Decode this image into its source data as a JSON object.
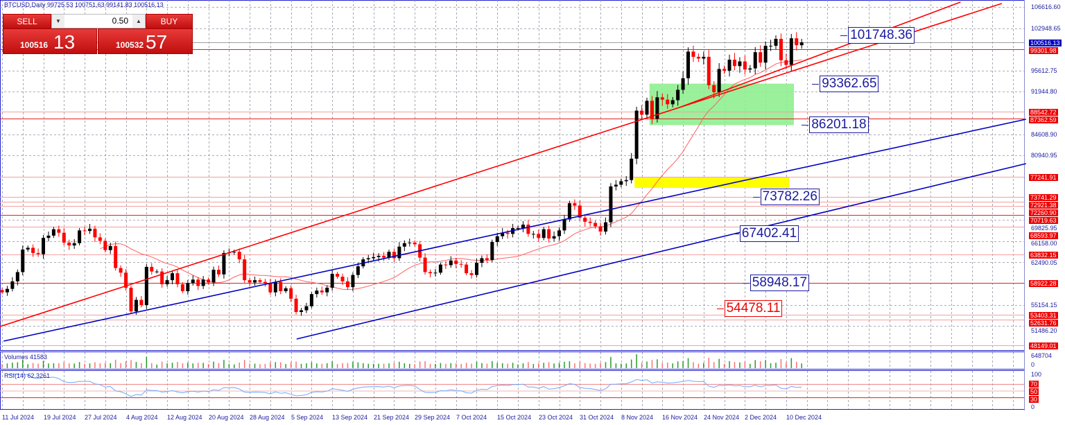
{
  "header": {
    "title": "BTCUSD,Daily  99725.53 100751.63 99141.83 100516.13"
  },
  "trade_panel": {
    "sell_label": "SELL",
    "buy_label": "BUY",
    "lot_value": "0.50",
    "sell_price_prefix": "100516",
    "sell_price_suffix": "13",
    "buy_price_prefix": "100532",
    "buy_price_suffix": "57"
  },
  "colors": {
    "up": "#000000",
    "down": "#ff0000",
    "channel_red": "#ff0000",
    "channel_blue": "#0000c0",
    "zone_green": "#90ee90",
    "zone_yellow": "#ffff00",
    "ma": "#ff6060",
    "rsi": "#6fa8ff"
  },
  "chart_data": {
    "type": "candlestick",
    "symbol": "BTCUSD",
    "timeframe": "Daily",
    "start_date": "11 Jul 2024",
    "price_unit": "thousands USD",
    "closes": [
      57.3,
      57.9,
      59.2,
      60.8,
      64.7,
      65.0,
      64.1,
      63.9,
      66.7,
      67.1,
      68.2,
      67.6,
      65.9,
      65.4,
      65.8,
      68.0,
      67.9,
      68.3,
      66.8,
      66.2,
      64.6,
      65.3,
      61.5,
      60.7,
      58.1,
      54.0,
      56.0,
      55.1,
      61.7,
      60.9,
      60.9,
      58.7,
      59.4,
      60.6,
      58.7,
      57.5,
      58.9,
      59.5,
      58.4,
      59.5,
      59.0,
      61.2,
      60.4,
      64.1,
      64.2,
      64.3,
      63.0,
      59.4,
      59.0,
      59.4,
      59.1,
      58.9,
      57.3,
      59.1,
      57.5,
      58.0,
      56.2,
      53.9,
      54.2,
      54.9,
      57.0,
      57.6,
      57.3,
      58.1,
      60.5,
      60.0,
      59.2,
      58.2,
      60.3,
      61.8,
      63.0,
      63.2,
      63.4,
      63.6,
      63.3,
      64.3,
      63.2,
      65.2,
      65.8,
      65.9,
      65.6,
      63.3,
      60.8,
      60.6,
      60.7,
      62.1,
      62.0,
      62.8,
      62.2,
      62.1,
      60.6,
      60.3,
      62.4,
      63.2,
      62.9,
      66.0,
      67.0,
      67.6,
      67.4,
      68.4,
      68.4,
      69.0,
      67.4,
      67.4,
      66.7,
      68.2,
      66.6,
      67.0,
      68.0,
      69.9,
      72.7,
      72.3,
      70.2,
      69.5,
      69.3,
      68.7,
      67.8,
      69.4,
      75.6,
      75.9,
      76.5,
      76.7,
      80.4,
      88.7,
      88.0,
      90.4,
      87.3,
      91.0,
      90.6,
      89.8,
      90.5,
      92.3,
      94.3,
      98.9,
      98.0,
      97.7,
      98.0,
      93.1,
      91.9,
      95.9,
      95.6,
      97.5,
      96.4,
      97.2,
      95.8,
      96.0,
      98.8,
      97.0,
      99.9,
      99.9,
      101.1,
      97.4,
      96.6,
      101.2,
      100.0,
      100.5
    ],
    "first_open": 57.7,
    "ma_period": 20,
    "price_axis_range": [
      48149.01,
      106616.6
    ],
    "price_ticks": [
      "106616.60",
      "102948.65",
      "95612.75",
      "91944.80",
      "84608.90",
      "80940.95",
      "69825.95",
      "66158.00",
      "62490.05",
      "55154.15",
      "51486.20"
    ],
    "horizontal_levels": [
      "99301.98",
      "88542.72",
      "87362.59",
      "77241.91",
      "73741.29",
      "72921.38",
      "72260.90",
      "70719.63",
      "68593.97",
      "63832.15",
      "58922.28",
      "53403.31",
      "52631.76",
      "48149.01"
    ],
    "current_price": "100516.13",
    "date_labels": [
      "11 Jul 2024",
      "19 Jul 2024",
      "27 Jul 2024",
      "4 Aug 2024",
      "12 Aug 2024",
      "20 Aug 2024",
      "28 Aug 2024",
      "5 Sep 2024",
      "13 Sep 2024",
      "21 Sep 2024",
      "29 Sep 2024",
      "7 Oct 2024",
      "15 Oct 2024",
      "23 Oct 2024",
      "31 Oct 2024",
      "8 Nov 2024",
      "16 Nov 2024",
      "24 Nov 2024",
      "2 Dec 2024",
      "10 Dec 2024"
    ],
    "trendlines": [
      {
        "color": "red",
        "from": [
          -0.4,
          51388
        ],
        "to": [
          193.8,
          107216
        ]
      },
      {
        "color": "red",
        "from": [
          131.3,
          89246
        ],
        "to": [
          185.8,
          107455
        ]
      },
      {
        "color": "blue",
        "from": [
          0.3,
          48873
        ],
        "to": [
          198.5,
          87209
        ]
      },
      {
        "color": "blue",
        "from": [
          57.1,
          49232
        ],
        "to": [
          198.5,
          79542
        ]
      }
    ],
    "zones": [
      {
        "color": "green",
        "days": [
          125.5,
          153.5
        ],
        "prices": [
          86201.18,
          93362.65
        ]
      },
      {
        "color": "yellow",
        "days": [
          122.6,
          152.6
        ],
        "prices": [
          75348,
          77241.91
        ]
      }
    ],
    "price_labels": [
      {
        "text": "101748.36",
        "day": 164,
        "price": 101748.36,
        "color": "blue"
      },
      {
        "text": "93362.65",
        "day": 158.5,
        "price": 93362.65,
        "color": "blue"
      },
      {
        "text": "86201.18",
        "day": 156.5,
        "price": 86201.18,
        "color": "blue"
      },
      {
        "text": "73782.26",
        "day": 147,
        "price": 73782.26,
        "color": "blue"
      },
      {
        "text": "67402.41",
        "day": 143,
        "price": 67402.41,
        "color": "blue"
      },
      {
        "text": "58948.17",
        "day": 145,
        "price": 58948.17,
        "color": "blue"
      },
      {
        "text": "54478.11",
        "day": 140,
        "price": 54478.11,
        "color": "red"
      }
    ],
    "volume": {
      "label": "Volumes 41583",
      "max_tick": "648704",
      "min_tick": "0"
    },
    "rsi": {
      "label": "RSI(14) 62.3261",
      "ticks": [
        "100",
        "70",
        "50",
        "30",
        "0"
      ]
    }
  }
}
